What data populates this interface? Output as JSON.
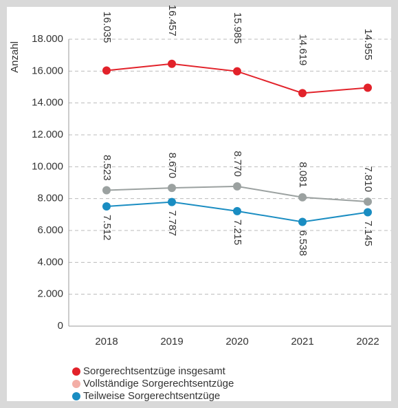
{
  "chart_data": {
    "type": "line",
    "y_axis_label": "Anzahl",
    "categories": [
      "2018",
      "2019",
      "2020",
      "2021",
      "2022"
    ],
    "series": [
      {
        "name": "Sorgerechtsentzüge insgesamt",
        "color": "#e2222a",
        "legend_color": "#e2222a",
        "label_position": "above",
        "values": [
          16035,
          16457,
          15985,
          14619,
          14955
        ],
        "value_labels": [
          "16.035",
          "16.457",
          "15.985",
          "14.619",
          "14.955"
        ]
      },
      {
        "name": "Vollständige Sorgerechtsentzüge",
        "color": "#9ba1a0",
        "legend_color": "#f3aea6",
        "label_position": "above",
        "values": [
          8523,
          8670,
          8770,
          8081,
          7810
        ],
        "value_labels": [
          "8.523",
          "8.670",
          "8.770",
          "8.081",
          "7.810"
        ]
      },
      {
        "name": "Teilweise Sorgerechtsentzüge",
        "color": "#1a8dc2",
        "legend_color": "#1a8dc2",
        "label_position": "below",
        "values": [
          7512,
          7787,
          7215,
          6538,
          7145
        ],
        "value_labels": [
          "7.512",
          "7.787",
          "7.215",
          "6.538",
          "7.145"
        ]
      }
    ],
    "ylim": [
      0,
      18000
    ],
    "yticks": [
      0,
      {
        "value": 2000,
        "label": "2.000"
      },
      {
        "value": 4000,
        "label": "4.000"
      },
      {
        "value": 6000,
        "label": "6.000"
      },
      {
        "value": 8000,
        "label": "8.000"
      },
      {
        "value": 10000,
        "label": "10.000"
      },
      {
        "value": 12000,
        "label": "12.000"
      },
      {
        "value": 14000,
        "label": "14.000"
      },
      {
        "value": 16000,
        "label": "16.000"
      },
      {
        "value": 18000,
        "label": "18.000"
      }
    ],
    "grid": true
  }
}
